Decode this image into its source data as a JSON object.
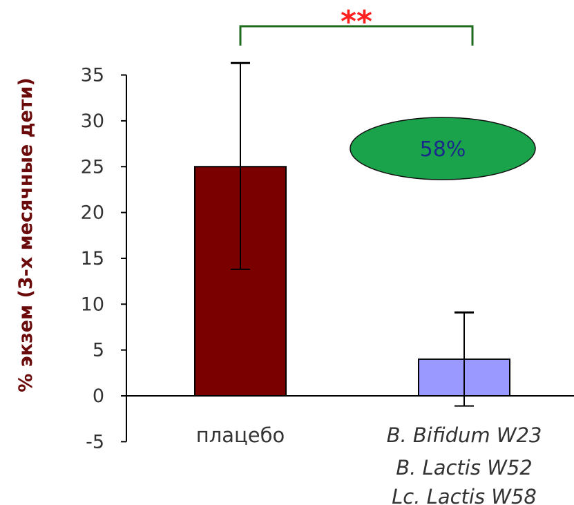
{
  "chart_data": {
    "type": "bar",
    "ylabel": "% экзем (3-х месячные дети)",
    "ylim": [
      -5,
      35
    ],
    "yticks": [
      35,
      30,
      25,
      20,
      15,
      10,
      5,
      0,
      -5
    ],
    "categories": [
      {
        "lines": [
          "плацебо"
        ],
        "italic": false
      },
      {
        "lines": [
          "B. Bifidum W23",
          "B. Lactis W52",
          "Lc. Lactis W58"
        ],
        "italic": true
      }
    ],
    "values": [
      25,
      4
    ],
    "error_low": [
      13.8,
      -1.1
    ],
    "error_high": [
      36.3,
      9.1
    ],
    "bar_colors": [
      "#7a0000",
      "#9999ff"
    ],
    "significance": "**",
    "significance_color": "#ff2020",
    "bracket_color": "#1e6b1e",
    "badge": {
      "text": "58%",
      "fill": "#1aa34a",
      "text_color": "#1a2a8a"
    }
  }
}
